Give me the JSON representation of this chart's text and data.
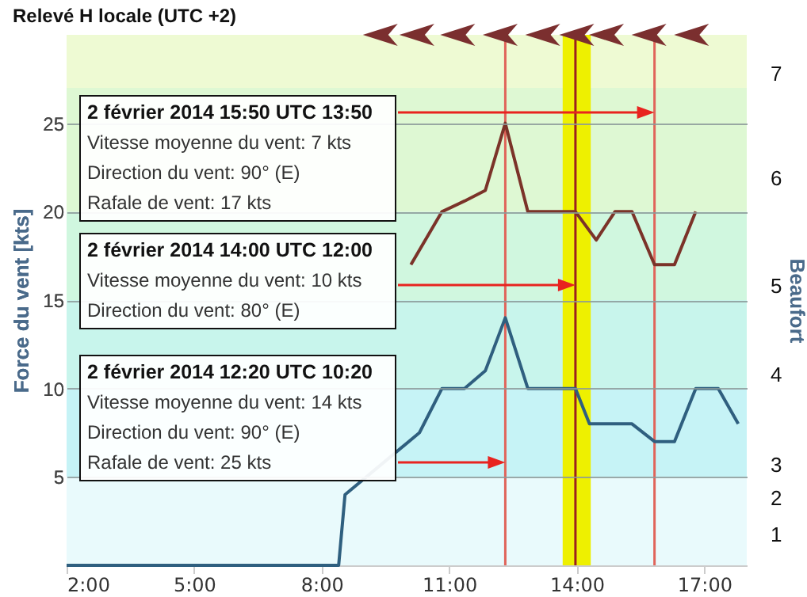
{
  "chart_data": {
    "type": "line",
    "title": "Relevé H locale (UTC +2)",
    "ylabel": "Force du vent [kts]",
    "y2label": "Beaufort",
    "series": [
      {
        "color": "#7b3329",
        "x": [
          10.1,
          10.83,
          11.36,
          11.85,
          12.32,
          12.85,
          13.57,
          13.97,
          14.46,
          14.9,
          15.3,
          15.83,
          16.3,
          16.8
        ],
        "values": [
          17,
          20,
          20.6,
          21.2,
          25,
          20,
          20,
          20,
          18.4,
          20,
          20,
          17,
          17,
          20
        ]
      },
      {
        "color": "#2f5f7f",
        "x": [
          2,
          8.4,
          8.55,
          10.3,
          10.83,
          11.36,
          11.85,
          12.32,
          12.85,
          13.57,
          13.97,
          14.3,
          15.3,
          15.83,
          16.3,
          16.8,
          17.33,
          17.8
        ],
        "values": [
          0,
          0,
          4,
          7.5,
          10,
          10,
          11,
          14,
          10,
          10,
          10,
          8,
          8,
          7,
          7,
          10,
          10,
          8
        ]
      }
    ],
    "xlim": [
      2,
      18
    ],
    "xticks": [
      {
        "value": 2,
        "label": "2:00"
      },
      {
        "value": 5,
        "label": "5:00"
      },
      {
        "value": 8,
        "label": "8:00"
      },
      {
        "value": 11,
        "label": "11:00"
      },
      {
        "value": 14,
        "label": "14:00"
      },
      {
        "value": 17,
        "label": "17:00"
      }
    ],
    "ylim": [
      0,
      30
    ],
    "yticks": [
      5,
      10,
      15,
      20,
      25
    ],
    "grid": "y",
    "bands": [
      {
        "axis": "y",
        "from": 0,
        "to": 5,
        "color": "#e9fafc"
      },
      {
        "axis": "y",
        "from": 5,
        "to": 10,
        "color": "#c6f3f6"
      },
      {
        "axis": "y",
        "from": 10,
        "to": 15,
        "color": "#c8f5ec"
      },
      {
        "axis": "y",
        "from": 15,
        "to": 20,
        "color": "#d0f7df"
      },
      {
        "axis": "y",
        "from": 20,
        "to": 27,
        "color": "#def8d3"
      },
      {
        "axis": "y",
        "from": 27,
        "to": 30,
        "color": "#eefad3"
      },
      {
        "axis": "x",
        "from": 13.67,
        "to": 14.33,
        "color": "#eef000"
      }
    ],
    "ref_lines": [
      {
        "axis": "x",
        "value": 12.32,
        "color": "#e0645a"
      },
      {
        "axis": "x",
        "value": 13.97,
        "color": "#9b1f1f"
      },
      {
        "axis": "x",
        "value": 15.83,
        "color": "#e0645a"
      }
    ],
    "annotations": [
      "2 février 2014 15:50  UTC 13:50\nVitesse moyenne du vent: 7 kts\nDirection du vent: 90° (E)\nRafale de vent: 17 kts",
      "2 février 2014 14:00  UTC 12:00\nVitesse moyenne du vent: 10 kts\nDirection du vent: 80° (E)",
      "2 février 2014 12:20  UTC 10:20\nVitesse moyenne du vent: 14 kts\nDirection du vent: 90° (E)\nRafale de vent: 25 kts",
      "1",
      "2",
      "3",
      "4",
      "5",
      "6",
      "7"
    ]
  }
}
